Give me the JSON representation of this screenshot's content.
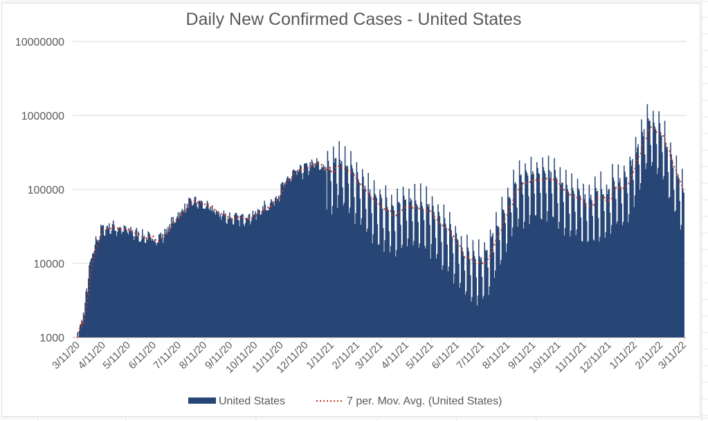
{
  "chart_data": {
    "type": "bar",
    "title": "Daily New Confirmed Cases - United States",
    "xlabel": "",
    "ylabel": "",
    "yscale": "log",
    "ylim": [
      1000,
      10000000
    ],
    "yticks": [
      "10000000",
      "1000000",
      "100000",
      "10000",
      "1000"
    ],
    "ytick_values": [
      10000000,
      1000000,
      100000,
      10000,
      1000
    ],
    "grid": true,
    "legend_position": "bottom",
    "start_date": "3/11/20",
    "end_date": "3/11/22",
    "xticks": [
      "3/11/20",
      "4/11/20",
      "5/11/20",
      "6/11/20",
      "7/11/20",
      "8/11/20",
      "9/11/20",
      "10/11/20",
      "11/11/20",
      "12/11/20",
      "1/11/21",
      "2/11/21",
      "3/11/21",
      "4/11/21",
      "5/11/21",
      "6/11/21",
      "7/11/21",
      "8/11/21",
      "9/11/21",
      "10/11/21",
      "11/11/21",
      "12/11/21",
      "1/11/22",
      "2/11/22",
      "3/11/22"
    ],
    "xtick_day_offsets": [
      0,
      31,
      61,
      92,
      122,
      153,
      184,
      214,
      245,
      275,
      306,
      337,
      365,
      396,
      426,
      457,
      487,
      518,
      549,
      579,
      610,
      640,
      671,
      702,
      730
    ],
    "series": [
      {
        "name": "United States",
        "kind": "bar",
        "color": "#274575",
        "weekly_avg_values": [
          1000,
          2000,
          8000,
          18000,
          28000,
          30000,
          31000,
          29000,
          28000,
          27000,
          25000,
          23000,
          22000,
          21000,
          22000,
          25000,
          33000,
          42000,
          52000,
          62000,
          67000,
          66000,
          58000,
          54000,
          48000,
          44000,
          42000,
          40000,
          39000,
          43000,
          44000,
          48000,
          56000,
          62000,
          75000,
          100000,
          130000,
          160000,
          170000,
          190000,
          205000,
          220000,
          200000,
          185000,
          230000,
          250000,
          210000,
          180000,
          150000,
          120000,
          90000,
          72000,
          66000,
          60000,
          56000,
          58000,
          62000,
          67000,
          70000,
          68000,
          60000,
          52000,
          40000,
          33000,
          27000,
          21000,
          16000,
          13000,
          12000,
          11500,
          12000,
          19000,
          30000,
          45000,
          70000,
          100000,
          130000,
          140000,
          150000,
          160000,
          150000,
          165000,
          145000,
          120000,
          105000,
          93000,
          83000,
          75000,
          73000,
          80000,
          90000,
          80000,
          120000,
          120000,
          125000,
          180000,
          300000,
          500000,
          750000,
          800000,
          700000,
          450000,
          250000,
          150000,
          100000,
          60000,
          40000
        ],
        "weekday_factors_2020": [
          1.05,
          1.1,
          1.08,
          1.02,
          0.95,
          0.85,
          0.95
        ],
        "weekday_factors_2021plus": [
          1.7,
          1.15,
          1.05,
          1.0,
          0.55,
          0.25,
          0.3
        ]
      },
      {
        "name": "7 per. Mov. Avg. (United States)",
        "kind": "line",
        "style": "dotted",
        "color": "#c0392b"
      }
    ]
  },
  "legend": {
    "items": [
      {
        "label": "United States",
        "color": "#274575"
      },
      {
        "label": "7 per. Mov. Avg. (United States)",
        "color": "#c0392b"
      }
    ]
  }
}
